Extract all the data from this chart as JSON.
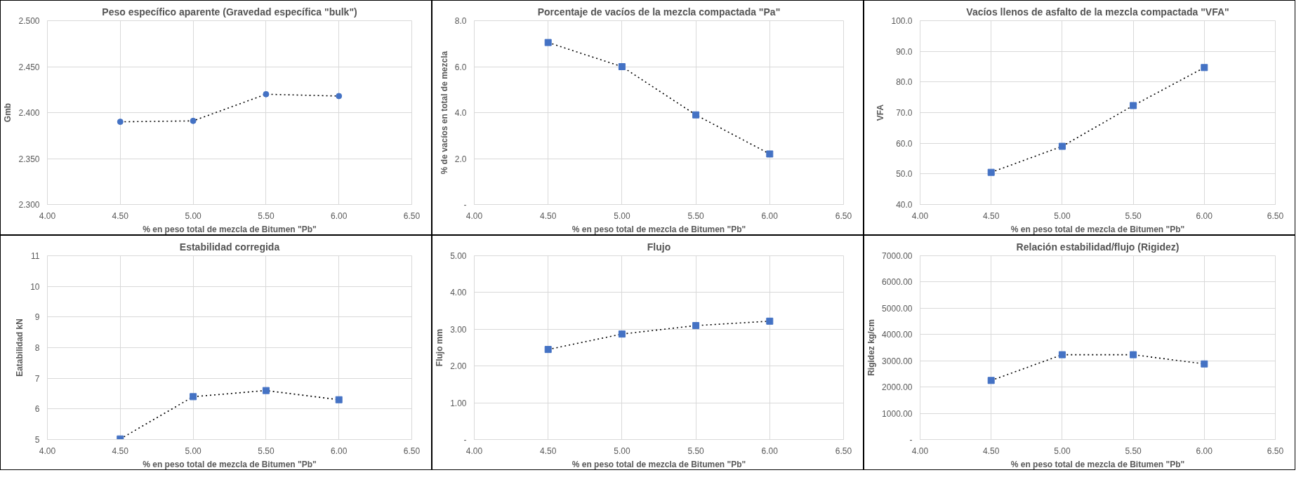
{
  "chart_data": [
    {
      "type": "line",
      "title": "Peso específico aparente (Gravedad específica \"bulk\")",
      "xlabel": "% en peso total de mezcla de Bitumen \"Pb\"",
      "ylabel": "Gmb",
      "x": [
        4.5,
        5.0,
        5.5,
        6.0
      ],
      "series": [
        {
          "color": "#4472c4",
          "values": [
            2.39,
            2.391,
            2.42,
            2.418
          ]
        }
      ],
      "xlim": [
        4.0,
        6.5
      ],
      "xticks": [
        {
          "value": 4.0,
          "label": "4.00"
        },
        {
          "value": 4.5,
          "label": "4.50"
        },
        {
          "value": 5.0,
          "label": "5.00"
        },
        {
          "value": 5.5,
          "label": "5.50"
        },
        {
          "value": 6.0,
          "label": "6.00"
        },
        {
          "value": 6.5,
          "label": "6.50"
        }
      ],
      "ylim": [
        2.3,
        2.5
      ],
      "yticks": [
        {
          "value": 2.3,
          "label": "2.300"
        },
        {
          "value": 2.35,
          "label": "2.350"
        },
        {
          "value": 2.4,
          "label": "2.400"
        },
        {
          "value": 2.45,
          "label": "2.450"
        },
        {
          "value": 2.5,
          "label": "2.500"
        }
      ],
      "grid": true,
      "marker": "circle",
      "line_style": "dotted"
    },
    {
      "type": "line",
      "title": "Porcentaje de vacíos de la mezcla compactada \"Pa\"",
      "xlabel": "% en peso total de mezcla de Bitumen \"Pb\"",
      "ylabel": "% de vacíos en total de mezcla",
      "x": [
        4.5,
        5.0,
        5.5,
        6.0
      ],
      "series": [
        {
          "color": "#4472c4",
          "values": [
            7.05,
            6.0,
            3.9,
            2.2
          ]
        }
      ],
      "xlim": [
        4.0,
        6.5
      ],
      "xticks": [
        {
          "value": 4.0,
          "label": "4.00"
        },
        {
          "value": 4.5,
          "label": "4.50"
        },
        {
          "value": 5.0,
          "label": "5.00"
        },
        {
          "value": 5.5,
          "label": "5.50"
        },
        {
          "value": 6.0,
          "label": "6.00"
        },
        {
          "value": 6.5,
          "label": "6.50"
        }
      ],
      "ylim": [
        0,
        8
      ],
      "yticks": [
        {
          "value": 0,
          "label": "-"
        },
        {
          "value": 2,
          "label": "2.0"
        },
        {
          "value": 4,
          "label": "4.0"
        },
        {
          "value": 6,
          "label": "6.0"
        },
        {
          "value": 8,
          "label": "8.0"
        }
      ],
      "grid": true,
      "marker": "square",
      "line_style": "dotted"
    },
    {
      "type": "line",
      "title": "Vacíos llenos de asfalto de la mezcla compactada \"VFA\"",
      "xlabel": "% en peso total de mezcla de Bitumen \"Pb\"",
      "ylabel": "VFA",
      "x": [
        4.5,
        5.0,
        5.5,
        6.0
      ],
      "series": [
        {
          "color": "#4472c4",
          "values": [
            50.5,
            59.0,
            72.3,
            84.7
          ]
        }
      ],
      "xlim": [
        4.0,
        6.5
      ],
      "xticks": [
        {
          "value": 4.0,
          "label": "4.00"
        },
        {
          "value": 4.5,
          "label": "4.50"
        },
        {
          "value": 5.0,
          "label": "5.00"
        },
        {
          "value": 5.5,
          "label": "5.50"
        },
        {
          "value": 6.0,
          "label": "6.00"
        },
        {
          "value": 6.5,
          "label": "6.50"
        }
      ],
      "ylim": [
        40,
        100
      ],
      "yticks": [
        {
          "value": 40,
          "label": "40.0"
        },
        {
          "value": 50,
          "label": "50.0"
        },
        {
          "value": 60,
          "label": "60.0"
        },
        {
          "value": 70,
          "label": "70.0"
        },
        {
          "value": 80,
          "label": "80.0"
        },
        {
          "value": 90,
          "label": "90.0"
        },
        {
          "value": 100,
          "label": "100.0"
        }
      ],
      "grid": true,
      "marker": "square",
      "line_style": "dotted"
    },
    {
      "type": "line",
      "title": "Estabilidad corregida",
      "xlabel": "% en peso total de mezcla de Bitumen \"Pb\"",
      "ylabel": "Eatabilidad kN",
      "x": [
        4.5,
        5.0,
        5.5,
        6.0
      ],
      "series": [
        {
          "color": "#4472c4",
          "values": [
            5.02,
            6.4,
            6.6,
            6.3
          ]
        }
      ],
      "xlim": [
        4.0,
        6.5
      ],
      "xticks": [
        {
          "value": 4.0,
          "label": "4.00"
        },
        {
          "value": 4.5,
          "label": "4.50"
        },
        {
          "value": 5.0,
          "label": "5.00"
        },
        {
          "value": 5.5,
          "label": "5.50"
        },
        {
          "value": 6.0,
          "label": "6.00"
        },
        {
          "value": 6.5,
          "label": "6.50"
        }
      ],
      "ylim": [
        5,
        11
      ],
      "yticks": [
        5,
        6,
        7,
        8,
        9,
        10,
        11
      ],
      "grid": true,
      "marker": "square",
      "line_style": "dotted"
    },
    {
      "type": "line",
      "title": "Flujo",
      "xlabel": "% en peso total de mezcla de Bitumen \"Pb\"",
      "ylabel": "Flujo mm",
      "x": [
        4.5,
        5.0,
        5.5,
        6.0
      ],
      "series": [
        {
          "color": "#4472c4",
          "values": [
            2.45,
            2.87,
            3.1,
            3.22
          ]
        }
      ],
      "xlim": [
        4.0,
        6.5
      ],
      "xticks": [
        {
          "value": 4.0,
          "label": "4.00"
        },
        {
          "value": 4.5,
          "label": "4.50"
        },
        {
          "value": 5.0,
          "label": "5.00"
        },
        {
          "value": 5.5,
          "label": "5.50"
        },
        {
          "value": 6.0,
          "label": "6.00"
        },
        {
          "value": 6.5,
          "label": "6.50"
        }
      ],
      "ylim": [
        0,
        5
      ],
      "yticks": [
        {
          "value": 0,
          "label": "-"
        },
        {
          "value": 1,
          "label": "1.00"
        },
        {
          "value": 2,
          "label": "2.00"
        },
        {
          "value": 3,
          "label": "3.00"
        },
        {
          "value": 4,
          "label": "4.00"
        },
        {
          "value": 5,
          "label": "5.00"
        }
      ],
      "grid": true,
      "marker": "square",
      "line_style": "dotted"
    },
    {
      "type": "line",
      "title": "Relación estabilidad/flujo (Rigidez)",
      "xlabel": "% en peso total de mezcla de Bitumen \"Pb\"",
      "ylabel": "Rigidez kg/cm",
      "x": [
        4.5,
        5.0,
        5.5,
        6.0
      ],
      "series": [
        {
          "color": "#4472c4",
          "values": [
            2250,
            3230,
            3230,
            2880
          ]
        }
      ],
      "xlim": [
        4.0,
        6.5
      ],
      "xticks": [
        {
          "value": 4.0,
          "label": "4.00"
        },
        {
          "value": 4.5,
          "label": "4.50"
        },
        {
          "value": 5.0,
          "label": "5.00"
        },
        {
          "value": 5.5,
          "label": "5.50"
        },
        {
          "value": 6.0,
          "label": "6.00"
        },
        {
          "value": 6.5,
          "label": "6.50"
        }
      ],
      "ylim": [
        0,
        7000
      ],
      "yticks": [
        {
          "value": 0,
          "label": "-"
        },
        {
          "value": 1000,
          "label": "1000.00"
        },
        {
          "value": 2000,
          "label": "2000.00"
        },
        {
          "value": 3000,
          "label": "3000.00"
        },
        {
          "value": 4000,
          "label": "4000.00"
        },
        {
          "value": 5000,
          "label": "5000.00"
        },
        {
          "value": 6000,
          "label": "6000.00"
        },
        {
          "value": 7000,
          "label": "7000.00"
        }
      ],
      "grid": true,
      "marker": "square",
      "line_style": "dotted"
    }
  ]
}
